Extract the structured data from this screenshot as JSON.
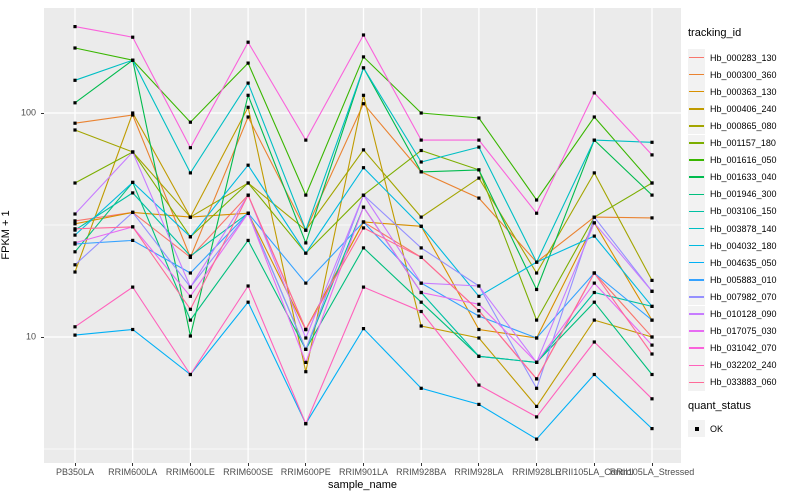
{
  "chart_data": {
    "type": "line",
    "xlabel": "sample_name",
    "ylabel": "FPKM + 1",
    "y_scale": "log10",
    "y_ticks": [
      10,
      100
    ],
    "y_minor_ticks": [
      3.162,
      31.62
    ],
    "ylim": [
      2.9,
      303
    ],
    "grid": true,
    "panel_bg": "#EBEBEB",
    "grid_color": "#FFFFFF",
    "point_color": "#000000",
    "legend_position": "right",
    "legend_title": "tracking_id",
    "legend2_title": "quant_status",
    "legend2_items": [
      {
        "label": "OK"
      }
    ],
    "categories": [
      "PB350LA",
      "RRIM600LA",
      "RRIM600LE",
      "RRIM600SE",
      "RRIM600PE",
      "RRIM901LA",
      "RRIM928BA",
      "RRIM928LA",
      "RRIM928LE",
      "RRII105LA_Control",
      "RRII105LA_Stressed"
    ],
    "series": [
      {
        "name": "Hb_000283_130",
        "color": "#F8766D",
        "values": [
          33,
          36,
          22.7,
          43,
          10.8,
          32.6,
          22.7,
          13.1,
          6.5,
          19.3,
          10
        ]
      },
      {
        "name": "Hb_000300_360",
        "color": "#EA8331",
        "values": [
          90,
          98,
          22.7,
          96,
          30,
          110,
          54.6,
          41.7,
          21.6,
          34.3,
          34
        ]
      },
      {
        "name": "Hb_000363_130",
        "color": "#D89000",
        "values": [
          32,
          36,
          34.3,
          35.7,
          10.8,
          32.6,
          31.2,
          10.8,
          9.9,
          32.3,
          11.9
        ]
      },
      {
        "name": "Hb_000406_240",
        "color": "#C09B00",
        "values": [
          19.5,
          100,
          34.3,
          106,
          7,
          120,
          11.2,
          9.9,
          4.9,
          11.9,
          10
        ]
      },
      {
        "name": "Hb_000865_080",
        "color": "#A3A500",
        "values": [
          84,
          67,
          34.3,
          48.7,
          30,
          68.4,
          34.3,
          51.2,
          19.3,
          54,
          17.9
        ]
      },
      {
        "name": "Hb_001157_180",
        "color": "#7CAE00",
        "values": [
          48.7,
          67,
          28,
          48.7,
          23.7,
          43,
          68,
          55.7,
          11.9,
          34.3,
          48.7
        ]
      },
      {
        "name": "Hb_001616_050",
        "color": "#39B600",
        "values": [
          195,
          172,
          91,
          167,
          43,
          178,
          100,
          95,
          40.9,
          96,
          48.7
        ]
      },
      {
        "name": "Hb_001633_040",
        "color": "#00BB4E",
        "values": [
          111,
          172,
          10.1,
          120,
          26.3,
          159,
          54.6,
          55.7,
          16.3,
          75.7,
          43
        ]
      },
      {
        "name": "Hb_001946_300",
        "color": "#00BF7D",
        "values": [
          24,
          49,
          11.9,
          27,
          8.8,
          25,
          14.3,
          8.2,
          7.7,
          14.3,
          6.8
        ]
      },
      {
        "name": "Hb_003106_150",
        "color": "#00C1A3",
        "values": [
          30,
          44,
          23,
          35.7,
          8.8,
          38,
          15.8,
          8.2,
          7.7,
          15.8,
          13.7
        ]
      },
      {
        "name": "Hb_003878_140",
        "color": "#00BFC4",
        "values": [
          140,
          172,
          54,
          136,
          30,
          159,
          60.4,
          70.4,
          21.6,
          75.7,
          74
        ]
      },
      {
        "name": "Hb_004032_180",
        "color": "#00BAE0",
        "values": [
          28.5,
          49,
          28,
          58.5,
          23.7,
          57,
          31.2,
          15.2,
          21.6,
          28.2,
          13.7
        ]
      },
      {
        "name": "Hb_004635_050",
        "color": "#00B0F6",
        "values": [
          10.2,
          10.8,
          6.8,
          14.3,
          4.1,
          10.9,
          5.9,
          5,
          3.5,
          6.8,
          3.9
        ]
      },
      {
        "name": "Hb_005883_010",
        "color": "#35A2FF",
        "values": [
          26,
          27,
          19.3,
          35.7,
          17.4,
          32.6,
          17.4,
          12.4,
          9.9,
          19.3,
          11.9
        ]
      },
      {
        "name": "Hb_007982_070",
        "color": "#9590FF",
        "values": [
          21,
          36,
          16.7,
          35.7,
          8.8,
          43,
          25,
          16.9,
          5.9,
          34.3,
          16
        ]
      },
      {
        "name": "Hb_010128_090",
        "color": "#C77CFF",
        "values": [
          35.4,
          67,
          16.7,
          43,
          9.9,
          43,
          17.4,
          16.9,
          7.7,
          32.3,
          16
        ]
      },
      {
        "name": "Hb_017075_030",
        "color": "#E76BF3",
        "values": [
          26.3,
          31,
          15.2,
          35.7,
          7.7,
          38,
          15.8,
          14,
          7.7,
          17.4,
          9.2
        ]
      },
      {
        "name": "Hb_031042_070",
        "color": "#FA62DB",
        "values": [
          243,
          218,
          70,
          207,
          75.7,
          223,
          75.7,
          75.7,
          35.7,
          123,
          65
        ]
      },
      {
        "name": "Hb_032202_240",
        "color": "#FF62BC",
        "values": [
          11.1,
          16.7,
          6.8,
          16.9,
          4.1,
          16.7,
          13,
          6.1,
          4.4,
          9.5,
          5.3
        ]
      },
      {
        "name": "Hb_033883_060",
        "color": "#FF6A98",
        "values": [
          30.4,
          31,
          13.3,
          43,
          10.8,
          30.7,
          22.7,
          13.1,
          6.5,
          19.3,
          8.4
        ]
      }
    ]
  }
}
